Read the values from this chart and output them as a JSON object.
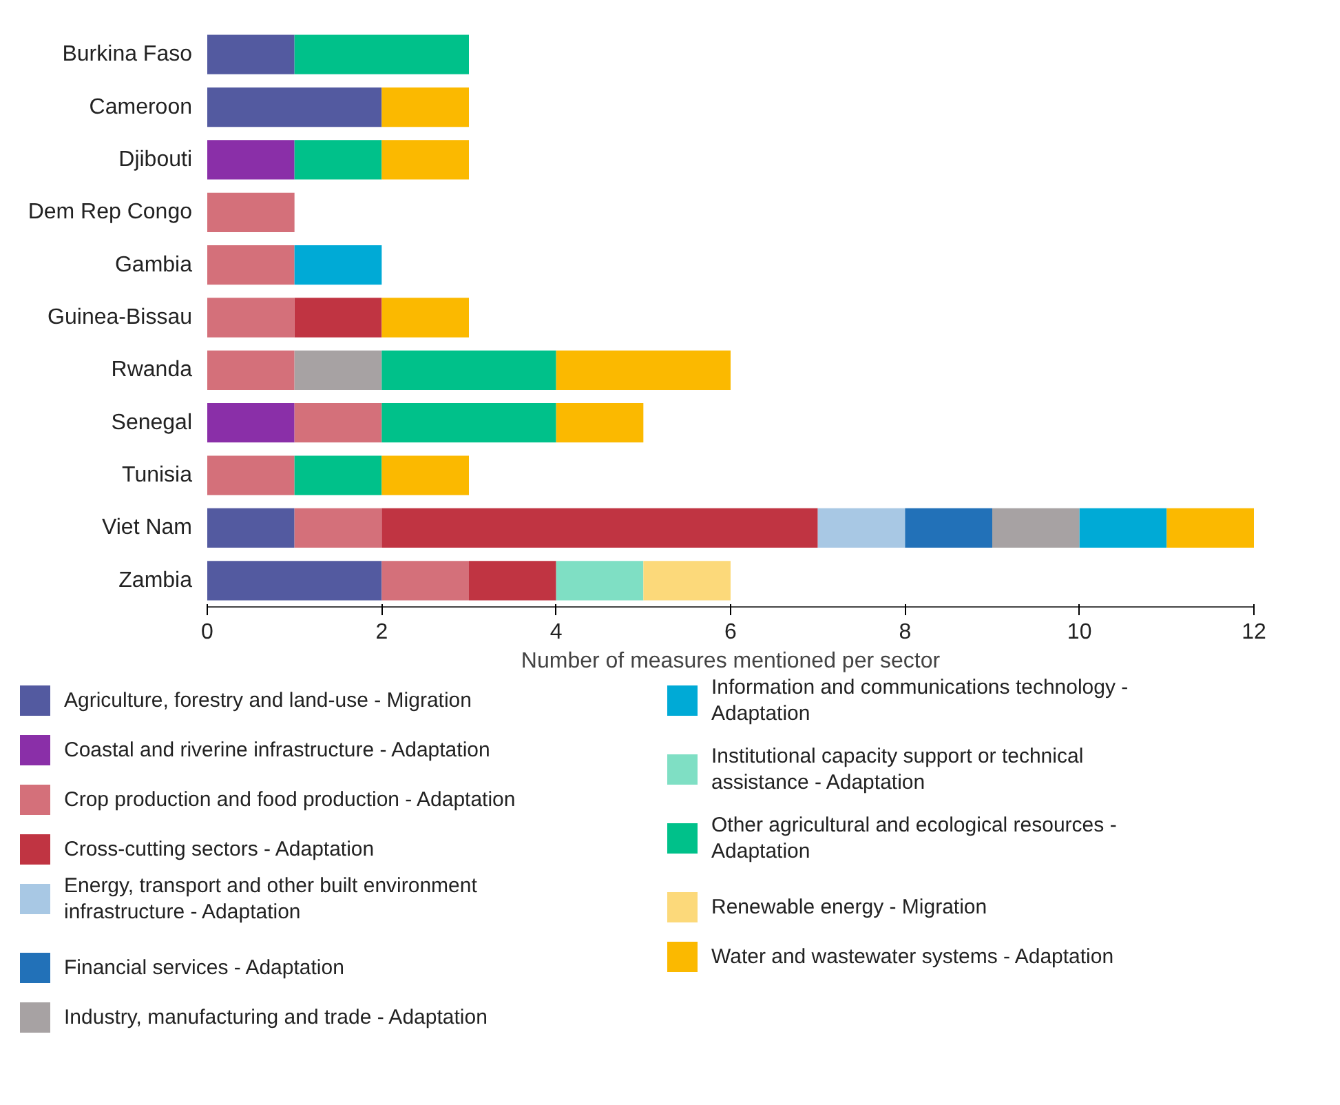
{
  "chart_data": {
    "type": "bar",
    "orientation": "horizontal",
    "stacked": true,
    "xlabel": "Number of measures mentioned per sector",
    "xlim": [
      0,
      12
    ],
    "xticks": [
      0,
      2,
      4,
      6,
      8,
      10,
      12
    ],
    "grid": false,
    "legend": "bottom",
    "categories": [
      "Burkina Faso",
      "Cameroon",
      "Djibouti",
      "Dem Rep Congo",
      "Gambia",
      "Guinea-Bissau",
      "Rwanda",
      "Senegal",
      "Tunisia",
      "Viet Nam",
      "Zambia"
    ],
    "series": [
      {
        "name": "Agriculture, forestry and land-use - Migration",
        "color": "#535aa0",
        "values": [
          1,
          2,
          null,
          null,
          null,
          null,
          null,
          null,
          null,
          1,
          2
        ]
      },
      {
        "name": "Coastal and riverine infrastructure - Adaptation",
        "color": "#8a2fa8",
        "values": [
          null,
          null,
          1,
          null,
          null,
          null,
          null,
          1,
          null,
          null,
          null
        ]
      },
      {
        "name": "Crop production and food production - Adaptation",
        "color": "#d4707a",
        "values": [
          null,
          null,
          null,
          1,
          1,
          1,
          1,
          1,
          1,
          1,
          1
        ]
      },
      {
        "name": "Cross-cutting sectors - Adaptation",
        "color": "#c03442",
        "values": [
          null,
          null,
          null,
          null,
          null,
          1,
          null,
          null,
          null,
          5,
          1
        ]
      },
      {
        "name": "Energy, transport and other built environment infrastructure - Adaptation",
        "color": "#a8c8e4",
        "values": [
          null,
          null,
          null,
          null,
          null,
          null,
          null,
          null,
          null,
          1,
          null
        ]
      },
      {
        "name": "Financial services - Adaptation",
        "color": "#2271b8",
        "values": [
          null,
          null,
          null,
          null,
          null,
          null,
          null,
          null,
          null,
          1,
          null
        ]
      },
      {
        "name": "Industry, manufacturing and trade - Adaptation",
        "color": "#a7a2a3",
        "values": [
          null,
          null,
          null,
          null,
          null,
          null,
          1,
          null,
          null,
          1,
          null
        ]
      },
      {
        "name": "Information and communications technology - Adaptation",
        "color": "#00aad6",
        "values": [
          null,
          null,
          null,
          null,
          1,
          null,
          null,
          null,
          null,
          1,
          null
        ]
      },
      {
        "name": "Institutional capacity support or technical assistance - Adaptation",
        "color": "#7fdfc4",
        "values": [
          null,
          null,
          null,
          null,
          null,
          null,
          null,
          null,
          null,
          null,
          1
        ]
      },
      {
        "name": "Other agricultural and ecological resources - Adaptation",
        "color": "#00c18a",
        "values": [
          2,
          null,
          1,
          null,
          null,
          null,
          2,
          2,
          1,
          null,
          null
        ]
      },
      {
        "name": "Renewable energy - Migration",
        "color": "#fcd97a",
        "values": [
          null,
          null,
          null,
          null,
          null,
          null,
          null,
          null,
          null,
          null,
          1
        ]
      },
      {
        "name": "Water and wastewater systems - Adaptation",
        "color": "#fbb900",
        "values": [
          null,
          1,
          1,
          null,
          null,
          1,
          2,
          1,
          1,
          1,
          null
        ]
      }
    ]
  }
}
